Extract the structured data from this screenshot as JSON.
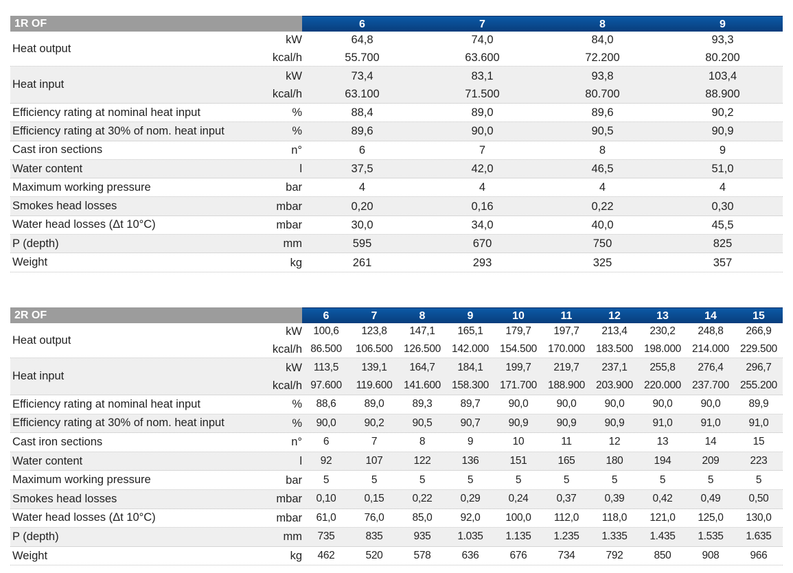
{
  "colors": {
    "header_grey": "#9c9c9c",
    "header_blue": "#0a4a8e",
    "row_alt": "#efefef"
  },
  "tables": [
    {
      "name": "1R OF",
      "columns": [
        "6",
        "7",
        "8",
        "9"
      ],
      "rows": [
        {
          "label": "Heat output",
          "units": [
            "kW",
            "kcal/h"
          ],
          "values": [
            [
              "64,8",
              "74,0",
              "84,0",
              "93,3"
            ],
            [
              "55.700",
              "63.600",
              "72.200",
              "80.200"
            ]
          ]
        },
        {
          "label": "Heat input",
          "units": [
            "kW",
            "kcal/h"
          ],
          "values": [
            [
              "73,4",
              "83,1",
              "93,8",
              "103,4"
            ],
            [
              "63.100",
              "71.500",
              "80.700",
              "88.900"
            ]
          ]
        },
        {
          "label": "Efficiency rating at nominal heat input",
          "units": [
            "%"
          ],
          "values": [
            [
              "88,4",
              "89,0",
              "89,6",
              "90,2"
            ]
          ]
        },
        {
          "label": "Efficiency rating at 30% of nom. heat input",
          "units": [
            "%"
          ],
          "values": [
            [
              "89,6",
              "90,0",
              "90,5",
              "90,9"
            ]
          ]
        },
        {
          "label": "Cast iron sections",
          "units": [
            "n°"
          ],
          "values": [
            [
              "6",
              "7",
              "8",
              "9"
            ]
          ]
        },
        {
          "label": "Water content",
          "units": [
            "l"
          ],
          "values": [
            [
              "37,5",
              "42,0",
              "46,5",
              "51,0"
            ]
          ]
        },
        {
          "label": "Maximum working pressure",
          "units": [
            "bar"
          ],
          "values": [
            [
              "4",
              "4",
              "4",
              "4"
            ]
          ]
        },
        {
          "label": "Smokes head losses",
          "units": [
            "mbar"
          ],
          "values": [
            [
              "0,20",
              "0,16",
              "0,22",
              "0,30"
            ]
          ]
        },
        {
          "label": "Water head losses (Δt 10°C)",
          "units": [
            "mbar"
          ],
          "values": [
            [
              "30,0",
              "34,0",
              "40,0",
              "45,5"
            ]
          ]
        },
        {
          "label": "P (depth)",
          "units": [
            "mm"
          ],
          "values": [
            [
              "595",
              "670",
              "750",
              "825"
            ]
          ]
        },
        {
          "label": "Weight",
          "units": [
            "kg"
          ],
          "values": [
            [
              "261",
              "293",
              "325",
              "357"
            ]
          ]
        }
      ]
    },
    {
      "name": "2R OF",
      "columns": [
        "6",
        "7",
        "8",
        "9",
        "10",
        "11",
        "12",
        "13",
        "14",
        "15"
      ],
      "rows": [
        {
          "label": "Heat output",
          "units": [
            "kW",
            "kcal/h"
          ],
          "values": [
            [
              "100,6",
              "123,8",
              "147,1",
              "165,1",
              "179,7",
              "197,7",
              "213,4",
              "230,2",
              "248,8",
              "266,9"
            ],
            [
              "86.500",
              "106.500",
              "126.500",
              "142.000",
              "154.500",
              "170.000",
              "183.500",
              "198.000",
              "214.000",
              "229.500"
            ]
          ]
        },
        {
          "label": "Heat input",
          "units": [
            "kW",
            "kcal/h"
          ],
          "values": [
            [
              "113,5",
              "139,1",
              "164,7",
              "184,1",
              "199,7",
              "219,7",
              "237,1",
              "255,8",
              "276,4",
              "296,7"
            ],
            [
              "97.600",
              "119.600",
              "141.600",
              "158.300",
              "171.700",
              "188.900",
              "203.900",
              "220.000",
              "237.700",
              "255.200"
            ]
          ]
        },
        {
          "label": "Efficiency rating at nominal heat input",
          "units": [
            "%"
          ],
          "values": [
            [
              "88,6",
              "89,0",
              "89,3",
              "89,7",
              "90,0",
              "90,0",
              "90,0",
              "90,0",
              "90,0",
              "89,9"
            ]
          ]
        },
        {
          "label": "Efficiency rating at 30% of nom. heat input",
          "units": [
            "%"
          ],
          "values": [
            [
              "90,0",
              "90,2",
              "90,5",
              "90,7",
              "90,9",
              "90,9",
              "90,9",
              "91,0",
              "91,0",
              "91,0"
            ]
          ]
        },
        {
          "label": "Cast iron sections",
          "units": [
            "n°"
          ],
          "values": [
            [
              "6",
              "7",
              "8",
              "9",
              "10",
              "11",
              "12",
              "13",
              "14",
              "15"
            ]
          ]
        },
        {
          "label": "Water content",
          "units": [
            "l"
          ],
          "values": [
            [
              "92",
              "107",
              "122",
              "136",
              "151",
              "165",
              "180",
              "194",
              "209",
              "223"
            ]
          ]
        },
        {
          "label": "Maximum working pressure",
          "units": [
            "bar"
          ],
          "values": [
            [
              "5",
              "5",
              "5",
              "5",
              "5",
              "5",
              "5",
              "5",
              "5",
              "5"
            ]
          ]
        },
        {
          "label": "Smokes head losses",
          "units": [
            "mbar"
          ],
          "values": [
            [
              "0,10",
              "0,15",
              "0,22",
              "0,29",
              "0,24",
              "0,37",
              "0,39",
              "0,42",
              "0,49",
              "0,50"
            ]
          ]
        },
        {
          "label": "Water head losses (Δt 10°C)",
          "units": [
            "mbar"
          ],
          "values": [
            [
              "61,0",
              "76,0",
              "85,0",
              "92,0",
              "100,0",
              "112,0",
              "118,0",
              "121,0",
              "125,0",
              "130,0"
            ]
          ]
        },
        {
          "label": "P (depth)",
          "units": [
            "mm"
          ],
          "values": [
            [
              "735",
              "835",
              "935",
              "1.035",
              "1.135",
              "1.235",
              "1.335",
              "1.435",
              "1.535",
              "1.635"
            ]
          ]
        },
        {
          "label": "Weight",
          "units": [
            "kg"
          ],
          "values": [
            [
              "462",
              "520",
              "578",
              "636",
              "676",
              "734",
              "792",
              "850",
              "908",
              "966"
            ]
          ]
        }
      ]
    }
  ]
}
